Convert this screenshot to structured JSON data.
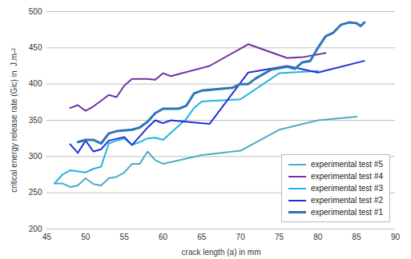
{
  "chart_data": {
    "type": "line",
    "xlabel": "crack length (a) in mm",
    "ylabel": "critical energy release rate (Gic) in  J.m-²",
    "xlim": [
      45,
      90
    ],
    "xticks": [
      45,
      50,
      55,
      60,
      65,
      70,
      75,
      80,
      85,
      90
    ],
    "ylim": [
      200,
      500
    ],
    "yticks": [
      200,
      250,
      300,
      350,
      400,
      450,
      500
    ],
    "grid": true,
    "legend": "lower right",
    "series": [
      {
        "name": "experimental test #5",
        "color": "#4bacc6",
        "x": [
          46,
          47,
          48,
          49,
          50,
          51,
          52,
          53,
          54,
          55,
          56,
          57,
          58,
          59,
          60,
          65,
          70,
          75,
          80,
          85
        ],
        "values": [
          263,
          263,
          258,
          260,
          270,
          262,
          260,
          270,
          272,
          278,
          290,
          290,
          307,
          295,
          290,
          302,
          308,
          337,
          350,
          355
        ]
      },
      {
        "name": "experimental test #4",
        "color": "#7030a0",
        "x": [
          48,
          49,
          50,
          51,
          53,
          54,
          55,
          56,
          58,
          59,
          60,
          61,
          66,
          71,
          76,
          78,
          81
        ],
        "values": [
          367,
          371,
          363,
          369,
          385,
          382,
          398,
          407,
          407,
          406,
          415,
          411,
          425,
          455,
          436,
          437,
          443
        ]
      },
      {
        "name": "experimental test #3",
        "color": "#1fb4e0",
        "x": [
          46,
          47,
          48,
          50,
          51,
          52,
          53,
          54,
          55,
          56,
          57,
          58,
          59,
          60,
          63,
          64,
          65,
          70,
          75,
          80
        ],
        "values": [
          263,
          275,
          281,
          278,
          283,
          286,
          318,
          322,
          325,
          316,
          320,
          325,
          326,
          323,
          352,
          367,
          376,
          379,
          415,
          418
        ]
      },
      {
        "name": "experimental test #2",
        "color": "#1f2fd8",
        "x": [
          48,
          49,
          50,
          51,
          52,
          53,
          55,
          56,
          58,
          59,
          60,
          61,
          66,
          71,
          76,
          80,
          86
        ],
        "values": [
          317,
          305,
          322,
          307,
          310,
          322,
          327,
          316,
          340,
          350,
          346,
          350,
          345,
          416,
          425,
          416,
          432
        ]
      },
      {
        "name": "experimental test #1",
        "color": "#2e75b6",
        "x": [
          49,
          50,
          51,
          52,
          53,
          54,
          56,
          57,
          58,
          59,
          60,
          62,
          63,
          64,
          65,
          67,
          69,
          70,
          71,
          72,
          74,
          76,
          77,
          78,
          79,
          80,
          81,
          82,
          83,
          84,
          85,
          85.5,
          86
        ],
        "values": [
          320,
          323,
          323,
          318,
          332,
          335,
          337,
          340,
          348,
          360,
          366,
          366,
          370,
          387,
          391,
          393,
          395,
          400,
          400,
          408,
          420,
          424,
          421,
          430,
          432,
          450,
          466,
          471,
          482,
          485,
          484,
          480,
          485
        ]
      }
    ]
  }
}
